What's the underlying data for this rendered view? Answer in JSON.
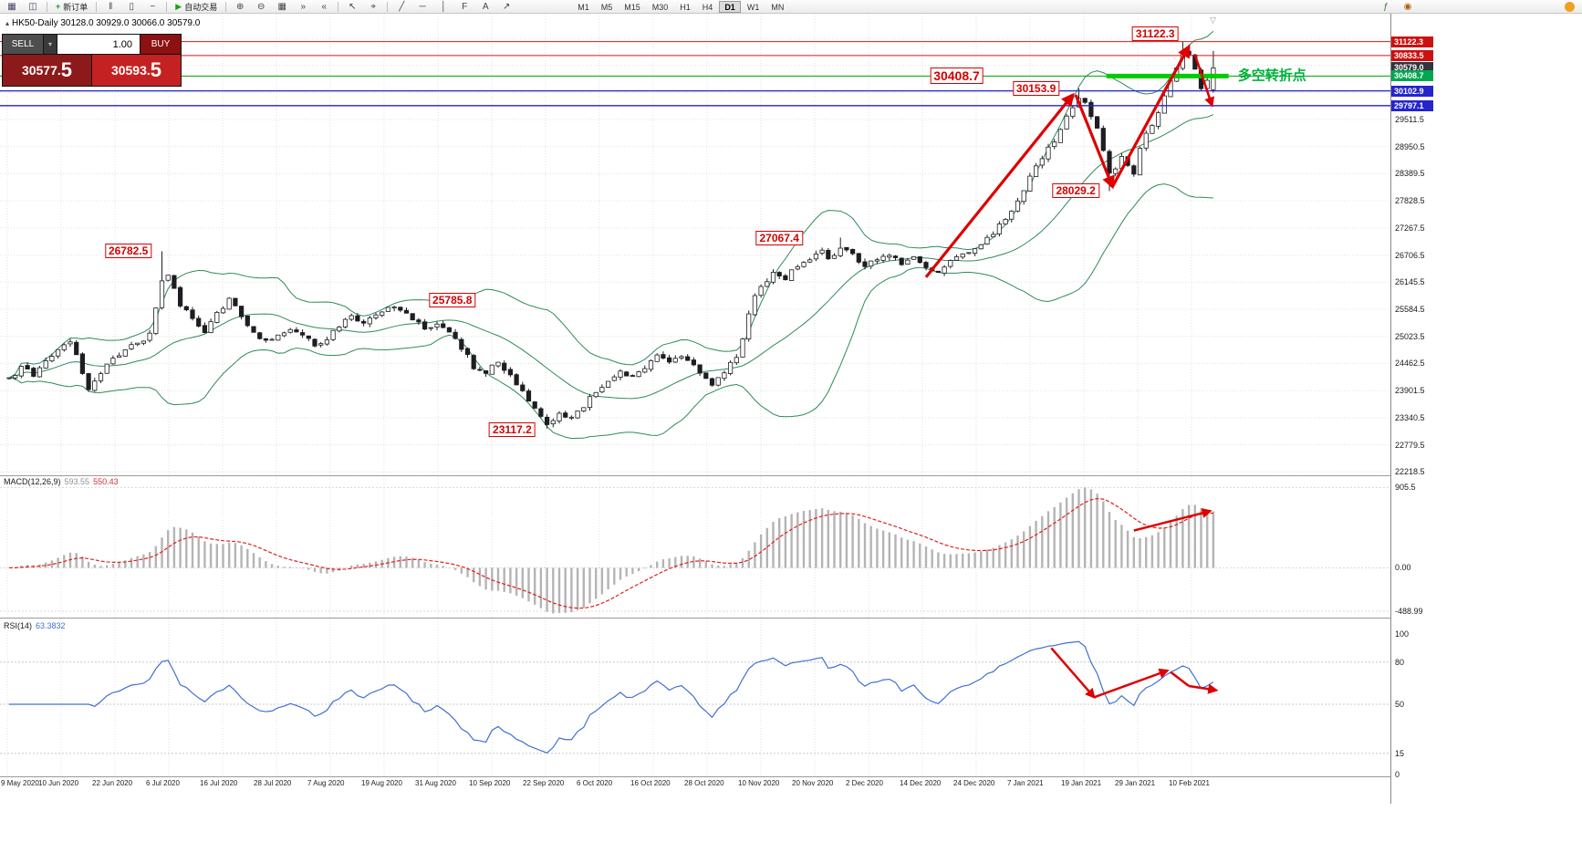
{
  "toolbar": {
    "left_groups": [
      {
        "name": "window-group",
        "items": [
          {
            "t": "icon",
            "name": "new-chart-icon",
            "glyph": "▦",
            "color": "#446"
          },
          {
            "t": "icon",
            "name": "chart-profiles-icon",
            "glyph": "◫",
            "color": "#446"
          }
        ]
      },
      {
        "name": "order-group",
        "items": [
          {
            "t": "button",
            "name": "new-order-button",
            "glyph": "+",
            "glyph_color": "#18a018",
            "label": "新订单"
          }
        ]
      },
      {
        "name": "chart-type-group",
        "items": [
          {
            "t": "icon",
            "name": "ohlc-bars-icon",
            "glyph": "‖",
            "color": "#444"
          },
          {
            "t": "icon",
            "name": "candlestick-chart-icon",
            "glyph": "▯",
            "color": "#444"
          },
          {
            "t": "icon",
            "name": "line-chart-icon",
            "glyph": "~",
            "color": "#444"
          }
        ]
      },
      {
        "name": "autotrade-group",
        "items": [
          {
            "t": "button",
            "name": "auto-trading-button",
            "glyph": "▶",
            "glyph_color": "#18a018",
            "label": "自动交易"
          }
        ]
      },
      {
        "name": "zoom-group",
        "items": [
          {
            "t": "icon",
            "name": "zoom-in-icon",
            "glyph": "⊕",
            "color": "#444"
          },
          {
            "t": "icon",
            "name": "zoom-out-icon",
            "glyph": "⊖",
            "color": "#444"
          },
          {
            "t": "icon",
            "name": "tile-windows-icon",
            "glyph": "▦",
            "color": "#444"
          },
          {
            "t": "icon",
            "name": "auto-scroll-icon",
            "glyph": "»",
            "color": "#444"
          },
          {
            "t": "icon",
            "name": "chart-shift-icon",
            "glyph": "«",
            "color": "#444"
          }
        ]
      },
      {
        "name": "cursor-group",
        "items": [
          {
            "t": "icon",
            "name": "cursor-icon",
            "glyph": "↖",
            "color": "#444"
          },
          {
            "t": "icon",
            "name": "crosshair-icon",
            "glyph": "⌖",
            "color": "#444"
          }
        ]
      },
      {
        "name": "objects-group",
        "items": [
          {
            "t": "icon",
            "name": "trendline-icon",
            "glyph": "╱",
            "color": "#444"
          },
          {
            "t": "icon",
            "name": "horizontal-line-icon",
            "glyph": "─",
            "color": "#444"
          },
          {
            "t": "icon",
            "name": "vertical-line-icon",
            "glyph": "│",
            "color": "#444"
          },
          {
            "t": "icon",
            "name": "fibonacci-icon",
            "glyph": "F",
            "color": "#444"
          },
          {
            "t": "icon",
            "name": "text-tool-icon",
            "glyph": "A",
            "color": "#444"
          },
          {
            "t": "icon",
            "name": "arrow-tool-icon",
            "glyph": "↗",
            "color": "#444"
          }
        ]
      }
    ],
    "timeframes": [
      {
        "label": "M1"
      },
      {
        "label": "M5"
      },
      {
        "label": "M15"
      },
      {
        "label": "M30"
      },
      {
        "label": "H1"
      },
      {
        "label": "H4"
      },
      {
        "label": "D1",
        "active": true
      },
      {
        "label": "W1"
      },
      {
        "label": "MN"
      }
    ],
    "right_icons": [
      {
        "name": "indicators-icon",
        "glyph": "ƒ",
        "color": "#2a7a2a"
      },
      {
        "name": "alerts-icon",
        "glyph": "◉",
        "color": "#b06000"
      }
    ]
  },
  "chart_header": {
    "toggle_glyph": "▴",
    "title": "HK50-Daily  30128.0 30929.0 30066.0 30579.0"
  },
  "trade_panel": {
    "sell_label": "SELL",
    "buy_label": "BUY",
    "volume": "1.00",
    "dropdown_glyph": "▾",
    "sell_main": "30577.",
    "sell_big": "5",
    "buy_main": "30593.",
    "buy_big": "5"
  },
  "price_axis": {
    "ticks": [
      "29511.5",
      "28950.5",
      "28389.5",
      "27828.5",
      "27267.5",
      "26706.5",
      "26145.5",
      "25584.5",
      "25023.5",
      "24462.5",
      "23901.5",
      "23340.5",
      "22779.5",
      "22218.5"
    ],
    "tags": [
      {
        "label": "31122.3",
        "price": 31122.3,
        "bg": "#cc1111"
      },
      {
        "label": "30833.5",
        "price": 30833.5,
        "bg": "#cc1111"
      },
      {
        "label": "30579.0",
        "price": 30579.0,
        "bg": "#34343e"
      },
      {
        "label": "30408.7",
        "price": 30408.7,
        "bg": "#00a651"
      },
      {
        "label": "30102.9",
        "price": 30102.9,
        "bg": "#2525cc"
      },
      {
        "label": "29797.1",
        "price": 29797.1,
        "bg": "#2525cc"
      }
    ]
  },
  "time_axis": {
    "labels": [
      "9 May 2020",
      "10 Jun 2020",
      "22 Jun 2020",
      "6 Jul 2020",
      "16 Jul 2020",
      "28 Jul 2020",
      "7 Aug 2020",
      "19 Aug 2020",
      "31 Aug 2020",
      "10 Sep 2020",
      "22 Sep 2020",
      "6 Oct 2020",
      "16 Oct 2020",
      "28 Oct 2020",
      "10 Nov 2020",
      "20 Nov 2020",
      "2 Dec 2020",
      "14 Dec 2020",
      "24 Dec 2020",
      "7 Jan 2021",
      "19 Jan 2021",
      "29 Jan 2021",
      "10 Feb 2021"
    ]
  },
  "indicators": {
    "macd": {
      "name": "MACD(12,26,9)",
      "value1": "593.55",
      "value2": "550.43",
      "axis_labels": [
        {
          "text": "905.5",
          "value": 905.5
        },
        {
          "text": "0.00",
          "value": 0
        },
        {
          "text": "-488.99",
          "value": -488.99
        }
      ]
    },
    "rsi": {
      "name": "RSI(14)",
      "value": "63.3832",
      "axis_labels": [
        {
          "text": "100",
          "value": 100
        },
        {
          "text": "80",
          "value": 80
        },
        {
          "text": "50",
          "value": 50
        },
        {
          "text": "15",
          "value": 15
        },
        {
          "text": "0",
          "value": 0
        }
      ],
      "levels": [
        80,
        50,
        15
      ]
    }
  },
  "annotations": {
    "price_labels": [
      {
        "text": "26782.5",
        "i": 19.5,
        "p": 26800
      },
      {
        "text": "25785.8",
        "i": 72.5,
        "p": 25780
      },
      {
        "text": "23117.2",
        "i": 82.3,
        "p": 23100
      },
      {
        "text": "27067.4",
        "i": 126,
        "p": 27060
      },
      {
        "text": "30153.9",
        "i": 168,
        "p": 30150
      },
      {
        "text": "28029.2",
        "i": 174.5,
        "p": 28030
      },
      {
        "text": "30408.7",
        "i": 155,
        "p": 30410,
        "big": true
      },
      {
        "text": "31122.3",
        "i": 187.5,
        "p": 31290
      }
    ],
    "turning_point": {
      "text": "多空转折点",
      "i": 201,
      "p": 30430
    },
    "hlines": [
      {
        "p": 31122.3,
        "color": "#ee1111",
        "w": 1
      },
      {
        "p": 30833.5,
        "color": "#ee1111",
        "w": 1
      },
      {
        "p": 30408.7,
        "color": "#00a000",
        "w": 1
      },
      {
        "p": 30102.9,
        "color": "#2222cc",
        "w": 1.3
      },
      {
        "p": 29797.1,
        "color": "#2222cc",
        "w": 1.3
      }
    ],
    "green_segment": {
      "p": 30408.7,
      "i1": 179.5,
      "i2": 199.5,
      "color": "#00cc00",
      "w": 5
    },
    "main_arrows": [
      {
        "i1": 150,
        "p1": 26250,
        "i2": 174,
        "p2": 30020,
        "w": 3.2,
        "head": true
      },
      {
        "i1": 174.5,
        "p1": 30020,
        "i2": 180.5,
        "p2": 28120,
        "w": 3.2,
        "head": true
      },
      {
        "i1": 180.5,
        "p1": 28120,
        "i2": 193,
        "p2": 31020,
        "w": 3.2,
        "head": true
      },
      {
        "i1": 194,
        "p1": 30850,
        "i2": 196.8,
        "p2": 29800,
        "w": 2.5,
        "head": true
      }
    ],
    "macd_arrow": {
      "i1": 184,
      "v1": 420,
      "i2": 196.5,
      "v2": 640,
      "w": 2.5,
      "head": true
    },
    "rsi_arrows": [
      {
        "i1": 170.5,
        "v1": 90,
        "i2": 177.5,
        "v2": 55,
        "w": 2.5,
        "head": true
      },
      {
        "i1": 177.5,
        "v1": 55,
        "i2": 189.5,
        "v2": 74,
        "w": 2.5,
        "head": true
      },
      {
        "i1": 190,
        "v1": 73,
        "i2": 193,
        "v2": 63,
        "w": 2.5,
        "head": false
      },
      {
        "i1": 193,
        "v1": 63,
        "i2": 197.5,
        "v2": 60,
        "w": 2.5,
        "head": true
      }
    ],
    "shift_marker_glyph": "▽"
  },
  "colors": {
    "up_candle": "#ffffff",
    "down_candle": "#1d1d22",
    "candle_stroke": "#1d1d22",
    "bollinger": "#2E8B57",
    "macd_hist": "#b4b4b4",
    "macd_signal": "#e02020",
    "rsi_line": "#4070d0",
    "grid": "#e0e0e0",
    "annotation_red": "#dd0000",
    "turning_green": "#00b33c"
  },
  "chart_data": {
    "type": "candlestick",
    "symbol": "HK50",
    "period": "Daily",
    "last_ohlc": {
      "open": 30128.0,
      "high": 30929.0,
      "low": 30066.0,
      "close": 30579.0
    },
    "visible_price_range": {
      "min": 22150,
      "max": 31700
    },
    "candle_count": 198,
    "indicators": [
      "Bollinger Bands(20,2)",
      "MACD(12,26,9) 593.55 550.43",
      "RSI(14) 63.3832"
    ],
    "key_levels": [
      31122.3,
      30833.5,
      30579.0,
      30408.7,
      30153.9,
      30102.9,
      29797.1,
      28029.2,
      27067.4,
      26782.5,
      25785.8,
      23117.2
    ],
    "price_path": [
      [
        0,
        24150
      ],
      [
        2,
        24350
      ],
      [
        4,
        24250
      ],
      [
        6,
        24550
      ],
      [
        8,
        24750
      ],
      [
        10,
        24950
      ],
      [
        11,
        24600
      ],
      [
        12,
        24250
      ],
      [
        13,
        23950
      ],
      [
        15,
        24300
      ],
      [
        17,
        24550
      ],
      [
        19,
        24750
      ],
      [
        21,
        24900
      ],
      [
        23,
        25050
      ],
      [
        24,
        25600
      ],
      [
        25,
        26150
      ],
      [
        26,
        26300
      ],
      [
        27,
        26000
      ],
      [
        28,
        25700
      ],
      [
        30,
        25400
      ],
      [
        32,
        25150
      ],
      [
        34,
        25500
      ],
      [
        36,
        25800
      ],
      [
        38,
        25400
      ],
      [
        40,
        25100
      ],
      [
        42,
        24900
      ],
      [
        44,
        25000
      ],
      [
        46,
        25200
      ],
      [
        48,
        25050
      ],
      [
        50,
        24850
      ],
      [
        52,
        25000
      ],
      [
        54,
        25250
      ],
      [
        56,
        25450
      ],
      [
        58,
        25300
      ],
      [
        60,
        25500
      ],
      [
        62,
        25650
      ],
      [
        64,
        25600
      ],
      [
        66,
        25400
      ],
      [
        68,
        25200
      ],
      [
        70,
        25300
      ],
      [
        72,
        25100
      ],
      [
        74,
        24800
      ],
      [
        76,
        24400
      ],
      [
        78,
        24300
      ],
      [
        80,
        24500
      ],
      [
        82,
        24200
      ],
      [
        84,
        23900
      ],
      [
        86,
        23500
      ],
      [
        88,
        23250
      ],
      [
        90,
        23400
      ],
      [
        92,
        23300
      ],
      [
        94,
        23600
      ],
      [
        96,
        23900
      ],
      [
        98,
        24100
      ],
      [
        100,
        24300
      ],
      [
        102,
        24200
      ],
      [
        104,
        24400
      ],
      [
        106,
        24600
      ],
      [
        108,
        24500
      ],
      [
        110,
        24600
      ],
      [
        112,
        24400
      ],
      [
        114,
        24200
      ],
      [
        115,
        24000
      ],
      [
        117,
        24300
      ],
      [
        119,
        24600
      ],
      [
        120,
        25000
      ],
      [
        121,
        25500
      ],
      [
        122,
        25900
      ],
      [
        123,
        26100
      ],
      [
        125,
        26300
      ],
      [
        127,
        26200
      ],
      [
        129,
        26500
      ],
      [
        131,
        26650
      ],
      [
        133,
        26800
      ],
      [
        134,
        26600
      ],
      [
        136,
        26900
      ],
      [
        138,
        26700
      ],
      [
        140,
        26500
      ],
      [
        142,
        26600
      ],
      [
        144,
        26750
      ],
      [
        146,
        26550
      ],
      [
        148,
        26650
      ],
      [
        150,
        26450
      ],
      [
        152,
        26350
      ],
      [
        154,
        26550
      ],
      [
        156,
        26700
      ],
      [
        158,
        26850
      ],
      [
        160,
        27050
      ],
      [
        162,
        27300
      ],
      [
        164,
        27600
      ],
      [
        166,
        28000
      ],
      [
        167,
        28300
      ],
      [
        169,
        28700
      ],
      [
        171,
        29100
      ],
      [
        173,
        29600
      ],
      [
        175,
        30000
      ],
      [
        176,
        29850
      ],
      [
        178,
        29300
      ],
      [
        180,
        28350
      ],
      [
        181,
        28500
      ],
      [
        182,
        28800
      ],
      [
        183,
        28600
      ],
      [
        184,
        28400
      ],
      [
        185,
        28900
      ],
      [
        186,
        29200
      ],
      [
        187,
        29400
      ],
      [
        188,
        29700
      ],
      [
        189,
        30000
      ],
      [
        190,
        30300
      ],
      [
        191,
        30600
      ],
      [
        192,
        30950
      ],
      [
        193,
        30850
      ],
      [
        194,
        30500
      ],
      [
        195,
        30150
      ],
      [
        196,
        30350
      ],
      [
        197,
        30500
      ]
    ],
    "key_candles": {
      "25": {
        "high": 26782.5
      },
      "88": {
        "low": 23117.2
      },
      "136": {
        "high": 27067.4
      },
      "175": {
        "high": 30153.9
      },
      "180": {
        "low": 28029.2
      },
      "192": {
        "high": 31122.3
      },
      "197": {
        "open": 30128.0,
        "high": 30929.0,
        "low": 30066.0,
        "close": 30579.0
      }
    }
  }
}
